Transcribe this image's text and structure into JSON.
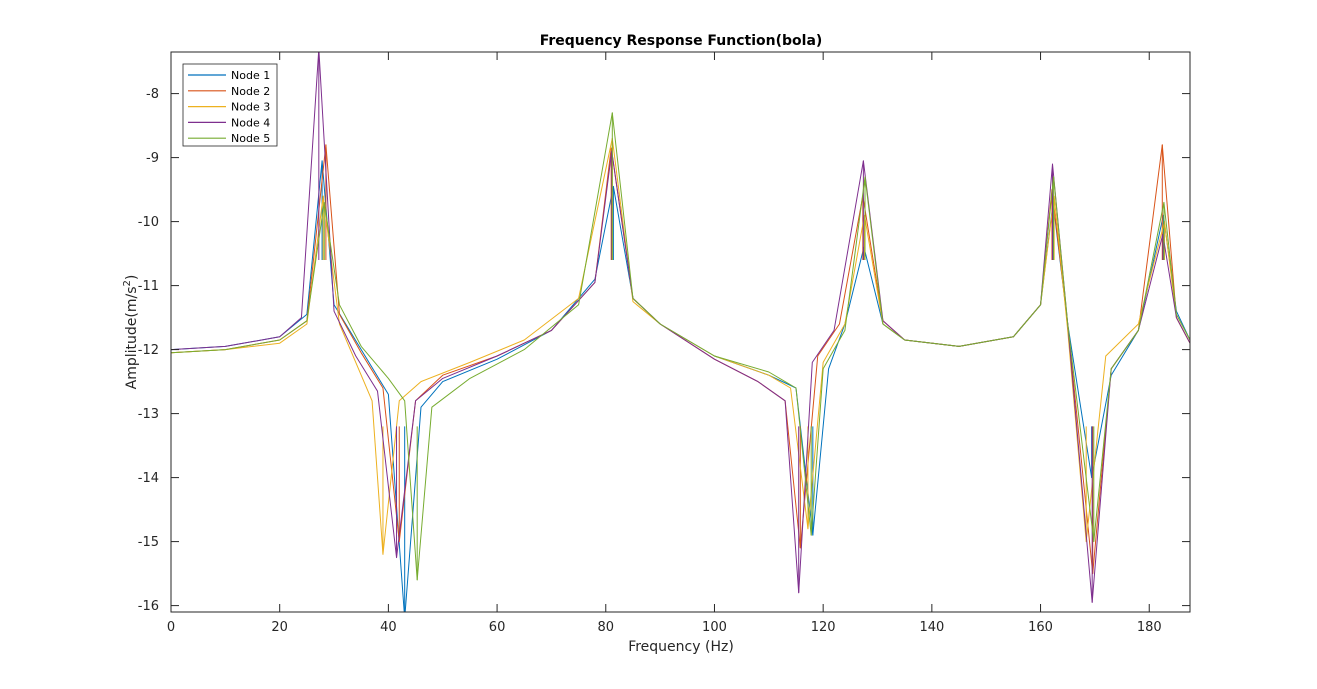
{
  "chart_data": {
    "type": "line",
    "title": "Frequency Response Function(bola)",
    "xlabel": "Frequency (Hz)",
    "ylabel_main": "Amplitude(m/s",
    "ylabel_sup": "2",
    "ylabel_close": ")",
    "xlim": [
      0,
      187.5
    ],
    "ylim": [
      -16.1,
      -7.35
    ],
    "xticks": [
      0,
      20,
      40,
      60,
      80,
      100,
      120,
      140,
      160,
      180
    ],
    "yticks": [
      -16,
      -15,
      -14,
      -13,
      -12,
      -11,
      -10,
      -9,
      -8
    ],
    "xtick_labels": [
      "0",
      "20",
      "40",
      "60",
      "80",
      "100",
      "120",
      "140",
      "160",
      "180"
    ],
    "ytick_labels": [
      "-16",
      "-15",
      "-14",
      "-13",
      "-12",
      "-11",
      "-10",
      "-9",
      "-8"
    ],
    "grid": false,
    "legend_position": "top-left",
    "series": [
      {
        "name": "Node 1",
        "color": "#0072BD",
        "peaks": [
          [
            27.8,
            -9.05
          ],
          [
            81.4,
            -9.45
          ],
          [
            127.5,
            -10.4
          ],
          [
            162.3,
            -9.7
          ],
          [
            182.6,
            -9.9
          ]
        ],
        "dips": [
          [
            43.0,
            -16.2
          ],
          [
            118.1,
            -14.9
          ],
          [
            169.4,
            -14.0
          ]
        ],
        "x": [
          0,
          10,
          20,
          25,
          27.8,
          30,
          35,
          40,
          43.0,
          46,
          50,
          60,
          70,
          78,
          81.4,
          85,
          90,
          100,
          110,
          115,
          118.1,
          121,
          124,
          127.5,
          131,
          135,
          145,
          155,
          160,
          162.3,
          165,
          169.4,
          173,
          178,
          182.6,
          185,
          187.5
        ],
        "y": [
          -12.0,
          -11.95,
          -11.8,
          -11.45,
          -9.05,
          -11.3,
          -12.0,
          -12.7,
          -16.2,
          -12.9,
          -12.5,
          -12.15,
          -11.7,
          -10.9,
          -9.45,
          -11.2,
          -11.6,
          -12.1,
          -12.4,
          -12.6,
          -14.9,
          -12.3,
          -11.6,
          -10.4,
          -11.6,
          -11.85,
          -11.95,
          -11.8,
          -11.3,
          -9.7,
          -11.6,
          -14.0,
          -12.4,
          -11.7,
          -9.9,
          -11.4,
          -11.85
        ]
      },
      {
        "name": "Node 2",
        "color": "#D95319",
        "peaks": [
          [
            28.5,
            -8.8
          ],
          [
            81.0,
            -8.85
          ],
          [
            127.3,
            -9.6
          ],
          [
            162.1,
            -9.5
          ],
          [
            182.4,
            -8.8
          ]
        ],
        "dips": [
          [
            42.0,
            -15.0
          ],
          [
            115.8,
            -15.1
          ],
          [
            169.6,
            -15.5
          ]
        ],
        "x": [
          0,
          10,
          20,
          25,
          28.5,
          31,
          35,
          39,
          42.0,
          45,
          50,
          60,
          70,
          78,
          81.0,
          85,
          90,
          100,
          108,
          113,
          115.8,
          119,
          123,
          127.3,
          131,
          135,
          145,
          155,
          160,
          162.1,
          165,
          169.6,
          173,
          178,
          182.4,
          185,
          187.5
        ],
        "y": [
          -12.05,
          -12.0,
          -11.85,
          -11.55,
          -8.8,
          -11.45,
          -12.05,
          -12.6,
          -15.0,
          -12.8,
          -12.4,
          -12.1,
          -11.7,
          -10.95,
          -8.85,
          -11.2,
          -11.6,
          -12.15,
          -12.5,
          -12.8,
          -15.1,
          -12.1,
          -11.6,
          -9.6,
          -11.55,
          -11.85,
          -11.95,
          -11.8,
          -11.3,
          -9.5,
          -11.6,
          -15.5,
          -12.3,
          -11.7,
          -8.8,
          -11.5,
          -11.9
        ]
      },
      {
        "name": "Node 3",
        "color": "#EDB120",
        "peaks": [
          [
            28.0,
            -9.6
          ],
          [
            81.2,
            -8.7
          ],
          [
            127.6,
            -9.9
          ],
          [
            162.5,
            -9.6
          ],
          [
            182.8,
            -10.0
          ]
        ],
        "dips": [
          [
            39.0,
            -15.2
          ],
          [
            117.2,
            -14.8
          ],
          [
            168.4,
            -15.0
          ]
        ],
        "x": [
          0,
          10,
          20,
          25,
          28.0,
          31,
          34,
          37,
          39.0,
          42,
          46,
          55,
          65,
          75,
          81.2,
          85,
          90,
          100,
          110,
          114,
          117.2,
          120,
          124,
          127.6,
          131,
          135,
          145,
          155,
          160,
          162.5,
          165,
          168.4,
          172,
          178,
          182.8,
          185,
          187.5
        ],
        "y": [
          -12.05,
          -12.0,
          -11.9,
          -11.6,
          -9.6,
          -11.6,
          -12.2,
          -12.8,
          -15.2,
          -12.8,
          -12.5,
          -12.2,
          -11.85,
          -11.2,
          -8.7,
          -11.25,
          -11.6,
          -12.1,
          -12.4,
          -12.6,
          -14.8,
          -12.2,
          -11.6,
          -9.9,
          -11.6,
          -11.85,
          -11.95,
          -11.8,
          -11.3,
          -9.6,
          -11.7,
          -15.0,
          -12.1,
          -11.6,
          -10.0,
          -11.5,
          -11.9
        ]
      },
      {
        "name": "Node 4",
        "color": "#7E2F8E",
        "peaks": [
          [
            27.2,
            -7.3
          ],
          [
            81.1,
            -8.9
          ],
          [
            127.4,
            -9.05
          ],
          [
            162.2,
            -9.1
          ],
          [
            182.5,
            -10.2
          ]
        ],
        "dips": [
          [
            41.5,
            -15.25
          ],
          [
            115.5,
            -15.8
          ],
          [
            169.5,
            -15.95
          ]
        ],
        "x": [
          0,
          10,
          20,
          24,
          27.2,
          30,
          34,
          38,
          41.5,
          45,
          50,
          60,
          70,
          78,
          81.1,
          85,
          90,
          100,
          108,
          113,
          115.5,
          118,
          122,
          127.4,
          131,
          135,
          145,
          155,
          160,
          162.2,
          165,
          169.5,
          173,
          178,
          182.5,
          185,
          187.5
        ],
        "y": [
          -12.0,
          -11.95,
          -11.8,
          -11.5,
          -7.3,
          -11.4,
          -12.1,
          -12.65,
          -15.25,
          -12.8,
          -12.45,
          -12.1,
          -11.7,
          -10.95,
          -8.9,
          -11.2,
          -11.6,
          -12.15,
          -12.5,
          -12.8,
          -15.8,
          -12.2,
          -11.7,
          -9.05,
          -11.55,
          -11.85,
          -11.95,
          -11.8,
          -11.3,
          -9.1,
          -11.6,
          -15.95,
          -12.3,
          -11.7,
          -10.2,
          -11.5,
          -11.9
        ]
      },
      {
        "name": "Node 5",
        "color": "#77AC30",
        "peaks": [
          [
            28.2,
            -9.7
          ],
          [
            81.2,
            -8.3
          ],
          [
            127.7,
            -9.3
          ],
          [
            162.4,
            -9.3
          ],
          [
            182.7,
            -9.7
          ]
        ],
        "dips": [
          [
            45.3,
            -15.6
          ],
          [
            117.8,
            -14.9
          ],
          [
            169.8,
            -15.0
          ]
        ],
        "x": [
          0,
          10,
          20,
          25,
          28.2,
          31,
          35,
          40,
          43,
          45.3,
          48,
          55,
          65,
          75,
          81.2,
          85,
          90,
          100,
          110,
          115,
          117.8,
          120,
          124,
          127.7,
          131,
          135,
          145,
          155,
          160,
          162.4,
          165,
          169.8,
          173,
          178,
          182.7,
          185,
          187.5
        ],
        "y": [
          -12.05,
          -12.0,
          -11.85,
          -11.55,
          -9.7,
          -11.3,
          -11.95,
          -12.45,
          -12.8,
          -15.6,
          -12.9,
          -12.45,
          -12.0,
          -11.3,
          -8.3,
          -11.2,
          -11.6,
          -12.1,
          -12.35,
          -12.6,
          -14.9,
          -12.3,
          -11.7,
          -9.3,
          -11.6,
          -11.85,
          -11.95,
          -11.8,
          -11.3,
          -9.3,
          -11.6,
          -15.0,
          -12.3,
          -11.7,
          -9.7,
          -11.45,
          -11.85
        ]
      }
    ]
  }
}
